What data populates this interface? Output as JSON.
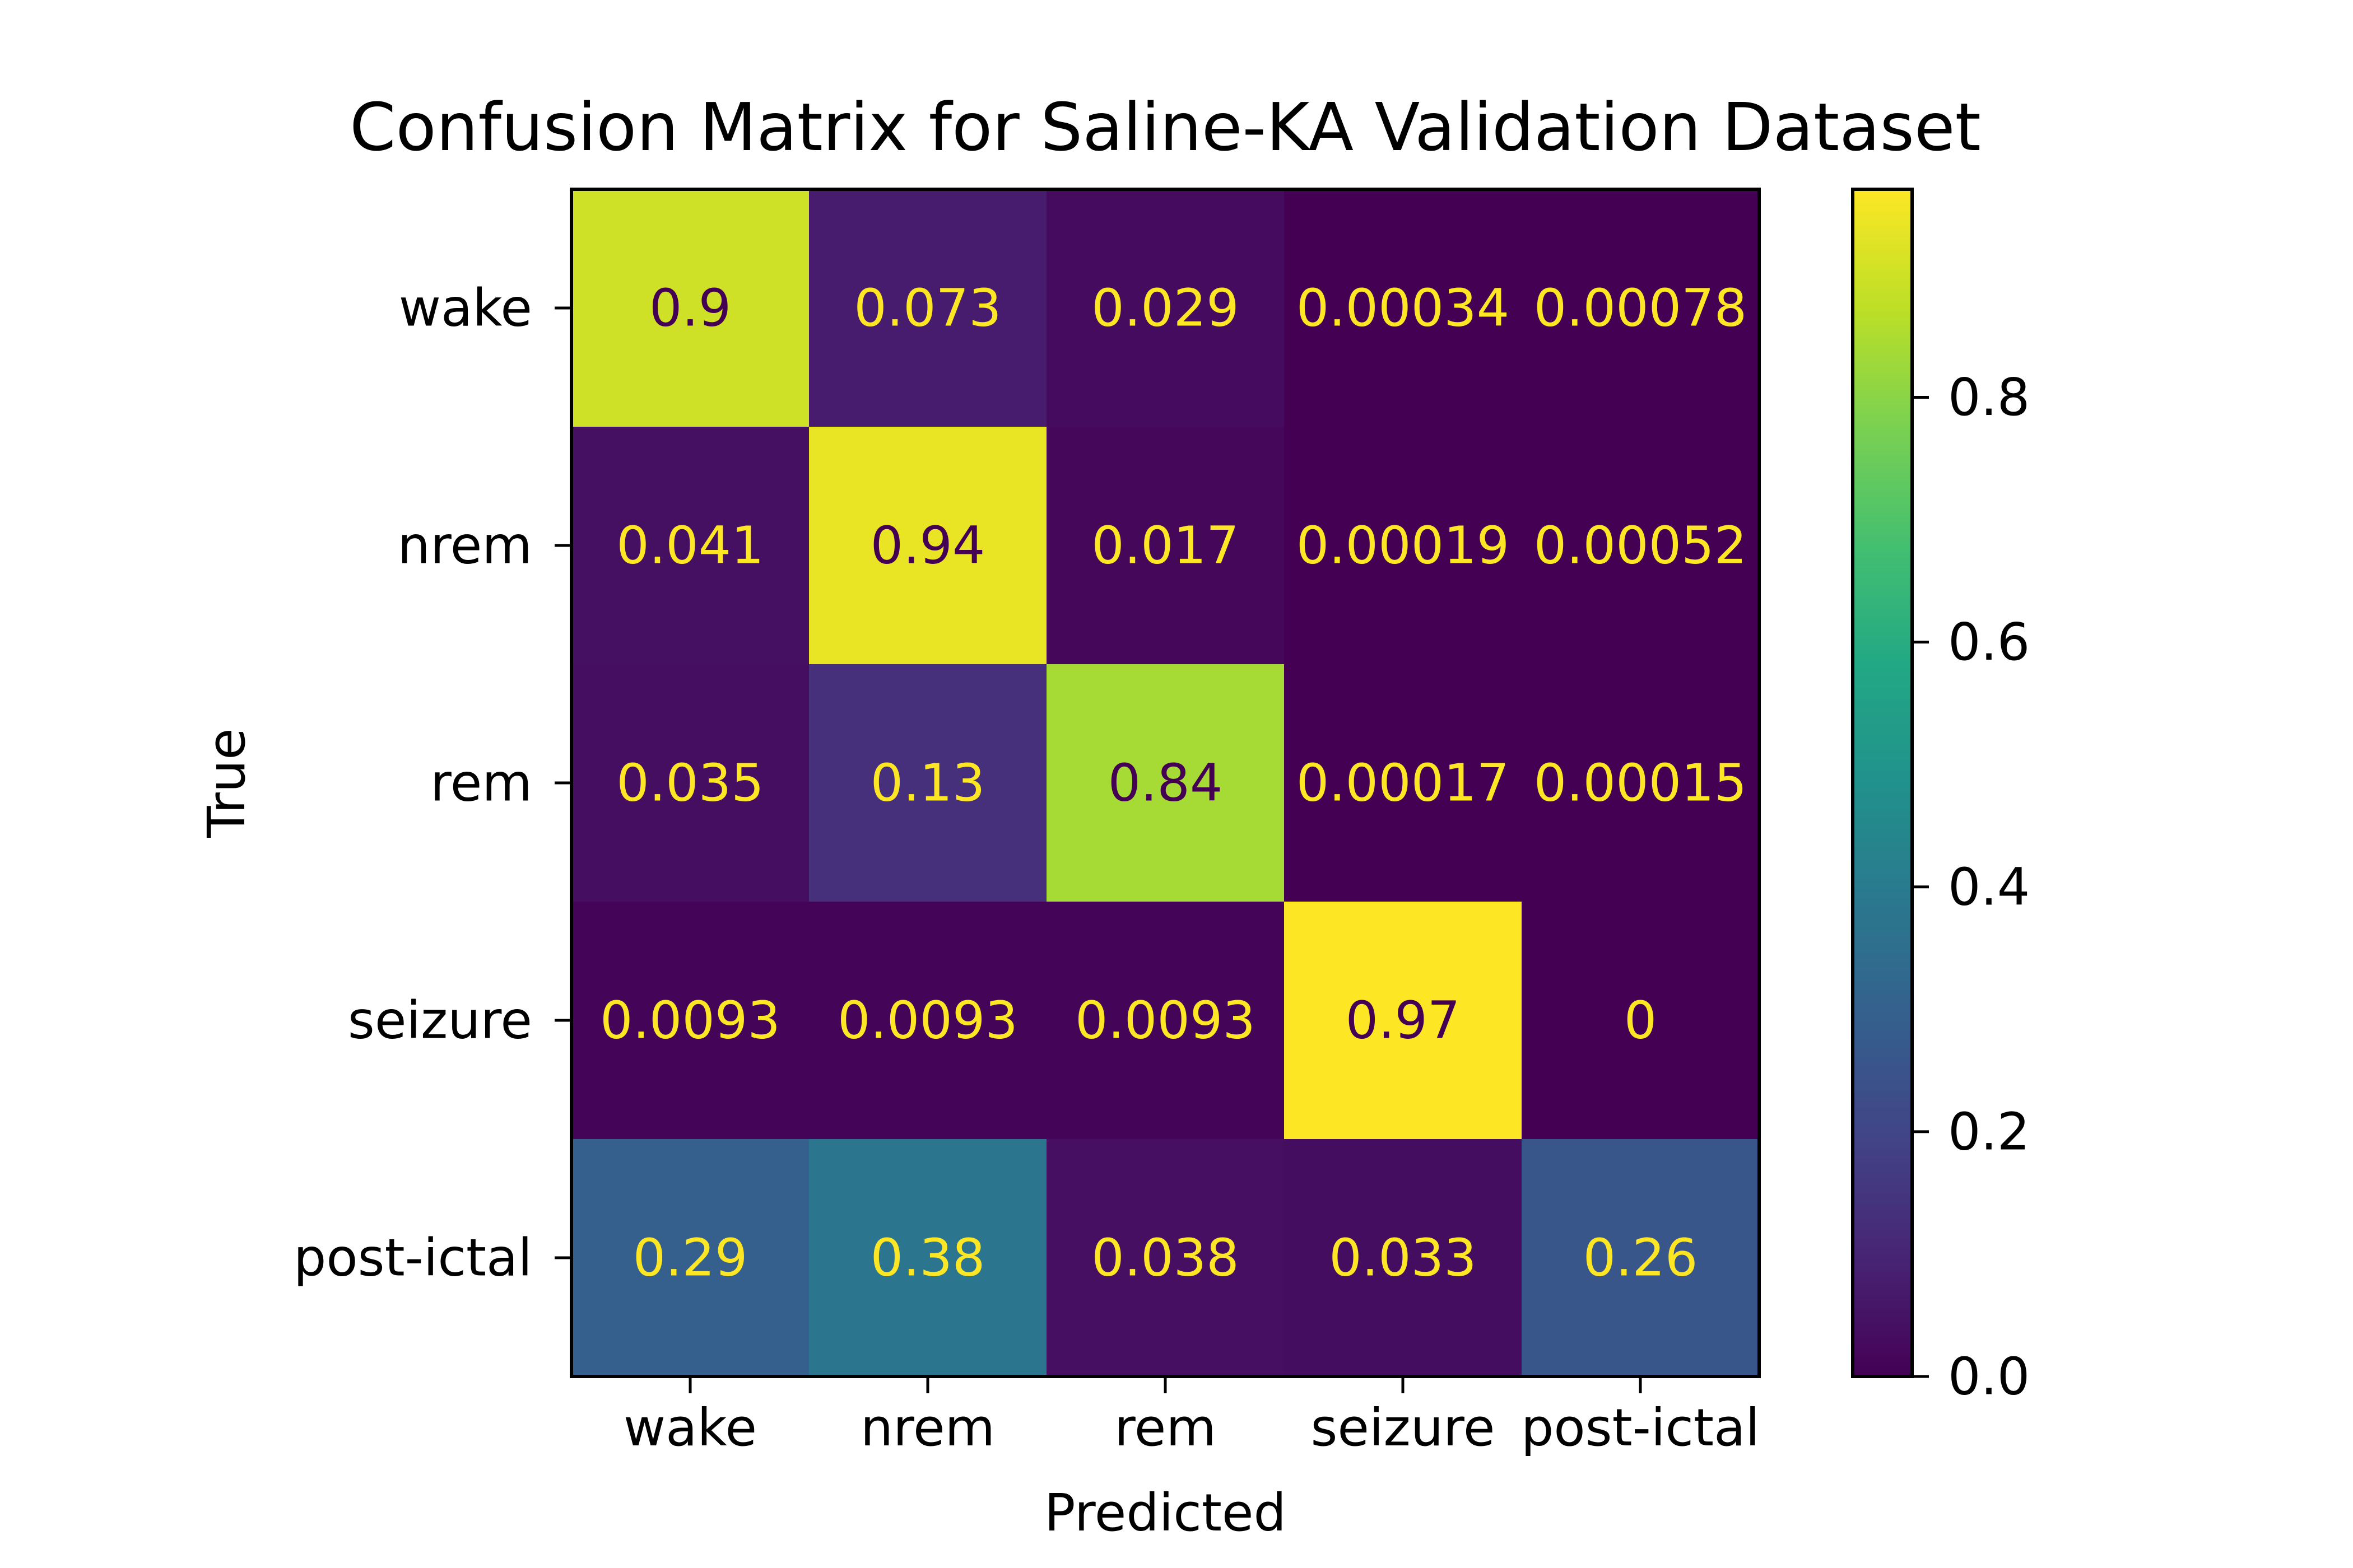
{
  "chart_data": {
    "type": "heatmap",
    "title": "Confusion Matrix for Saline-KA Validation Dataset",
    "xlabel": "Predicted",
    "ylabel": "True",
    "x_categories": [
      "wake",
      "nrem",
      "rem",
      "seizure",
      "post-ictal"
    ],
    "y_categories": [
      "wake",
      "nrem",
      "rem",
      "seizure",
      "post-ictal"
    ],
    "values": [
      [
        0.9,
        0.073,
        0.029,
        0.00034,
        0.00078
      ],
      [
        0.041,
        0.94,
        0.017,
        0.00019,
        0.00052
      ],
      [
        0.035,
        0.13,
        0.84,
        0.00017,
        0.00015
      ],
      [
        0.0093,
        0.0093,
        0.0093,
        0.97,
        0
      ],
      [
        0.29,
        0.38,
        0.038,
        0.033,
        0.26
      ]
    ],
    "value_labels": [
      [
        "0.9",
        "0.073",
        "0.029",
        "0.00034",
        "0.00078"
      ],
      [
        "0.041",
        "0.94",
        "0.017",
        "0.00019",
        "0.00052"
      ],
      [
        "0.035",
        "0.13",
        "0.84",
        "0.00017",
        "0.00015"
      ],
      [
        "0.0093",
        "0.0093",
        "0.0093",
        "0.97",
        "0"
      ],
      [
        "0.29",
        "0.38",
        "0.038",
        "0.033",
        "0.26"
      ]
    ],
    "colormap": "viridis",
    "colorbar": {
      "range": [
        0.0,
        0.97
      ],
      "ticks": [
        0.0,
        0.2,
        0.4,
        0.6,
        0.8
      ],
      "tick_labels": [
        "0.0",
        "0.2",
        "0.4",
        "0.6",
        "0.8"
      ]
    },
    "text_colors": {
      "on_dark": "#fde725",
      "on_light": "#440154"
    },
    "grid": false
  }
}
